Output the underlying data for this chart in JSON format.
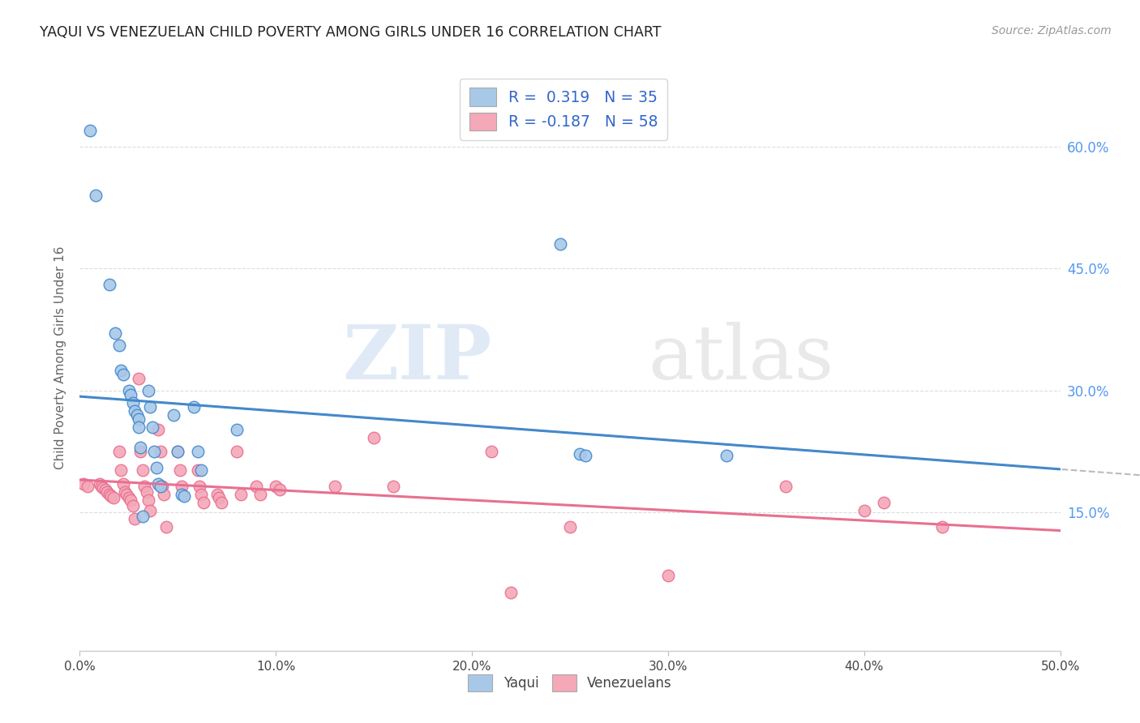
{
  "title": "YAQUI VS VENEZUELAN CHILD POVERTY AMONG GIRLS UNDER 16 CORRELATION CHART",
  "source": "Source: ZipAtlas.com",
  "ylabel": "Child Poverty Among Girls Under 16",
  "watermark_zip": "ZIP",
  "watermark_atlas": "atlas",
  "legend_r1": "R =  0.319",
  "legend_n1": "N = 35",
  "legend_r2": "R = -0.187",
  "legend_n2": "N = 58",
  "xlim": [
    0.0,
    0.5
  ],
  "ylim": [
    -0.02,
    0.7
  ],
  "plot_ylim": [
    0.0,
    0.68
  ],
  "xticks": [
    0.0,
    0.1,
    0.2,
    0.3,
    0.4,
    0.5
  ],
  "yticks": [
    0.15,
    0.3,
    0.45,
    0.6
  ],
  "ytick_labels_right": [
    "15.0%",
    "30.0%",
    "45.0%",
    "60.0%"
  ],
  "xtick_labels": [
    "0.0%",
    "10.0%",
    "20.0%",
    "30.0%",
    "40.0%",
    "50.0%"
  ],
  "color_yaqui": "#a8c8e8",
  "color_venezuelan": "#f4a8b8",
  "line_color_yaqui": "#4488cc",
  "line_color_venezuelan": "#e87090",
  "dashed_line_color": "#bbbbbb",
  "yaqui_scatter_x": [
    0.005,
    0.008,
    0.015,
    0.018,
    0.02,
    0.021,
    0.022,
    0.025,
    0.026,
    0.027,
    0.028,
    0.029,
    0.03,
    0.03,
    0.031,
    0.032,
    0.035,
    0.036,
    0.037,
    0.038,
    0.039,
    0.04,
    0.041,
    0.048,
    0.05,
    0.052,
    0.053,
    0.058,
    0.06,
    0.062,
    0.08,
    0.245,
    0.255,
    0.258,
    0.33
  ],
  "yaqui_scatter_y": [
    0.62,
    0.54,
    0.43,
    0.37,
    0.355,
    0.325,
    0.32,
    0.3,
    0.295,
    0.285,
    0.275,
    0.27,
    0.265,
    0.255,
    0.23,
    0.145,
    0.3,
    0.28,
    0.255,
    0.225,
    0.205,
    0.185,
    0.182,
    0.27,
    0.225,
    0.172,
    0.17,
    0.28,
    0.225,
    0.202,
    0.252,
    0.48,
    0.222,
    0.22,
    0.22
  ],
  "venezuelan_scatter_x": [
    0.002,
    0.004,
    0.01,
    0.011,
    0.012,
    0.013,
    0.014,
    0.015,
    0.016,
    0.017,
    0.02,
    0.021,
    0.022,
    0.023,
    0.024,
    0.025,
    0.026,
    0.027,
    0.028,
    0.03,
    0.031,
    0.032,
    0.033,
    0.034,
    0.035,
    0.036,
    0.04,
    0.041,
    0.042,
    0.043,
    0.044,
    0.05,
    0.051,
    0.052,
    0.06,
    0.061,
    0.062,
    0.063,
    0.07,
    0.071,
    0.072,
    0.08,
    0.082,
    0.09,
    0.092,
    0.1,
    0.102,
    0.13,
    0.15,
    0.16,
    0.21,
    0.22,
    0.25,
    0.3,
    0.36,
    0.4,
    0.41,
    0.44
  ],
  "venezuelan_scatter_y": [
    0.185,
    0.182,
    0.185,
    0.182,
    0.18,
    0.178,
    0.175,
    0.172,
    0.17,
    0.168,
    0.225,
    0.202,
    0.185,
    0.175,
    0.172,
    0.168,
    0.165,
    0.158,
    0.142,
    0.315,
    0.225,
    0.202,
    0.182,
    0.175,
    0.165,
    0.152,
    0.252,
    0.225,
    0.182,
    0.172,
    0.132,
    0.225,
    0.202,
    0.182,
    0.202,
    0.182,
    0.172,
    0.162,
    0.172,
    0.168,
    0.162,
    0.225,
    0.172,
    0.182,
    0.172,
    0.182,
    0.178,
    0.182,
    0.242,
    0.182,
    0.225,
    0.052,
    0.132,
    0.072,
    0.182,
    0.152,
    0.162,
    0.132
  ],
  "background_color": "#ffffff",
  "grid_color": "#dddddd",
  "title_color": "#222222",
  "axis_label_color": "#666666",
  "right_tick_color": "#5599ee"
}
